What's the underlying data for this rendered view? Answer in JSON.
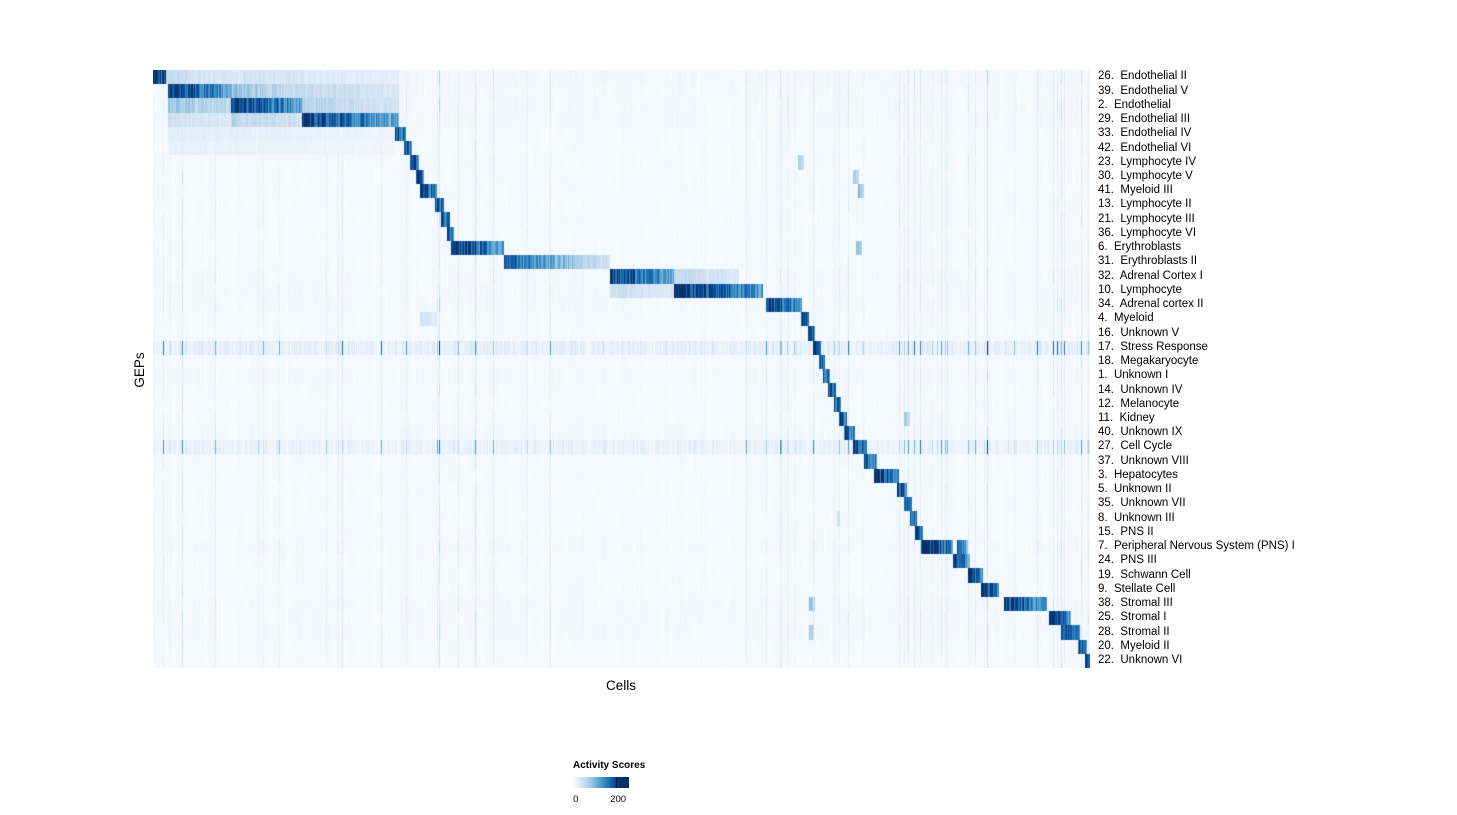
{
  "figure": {
    "xlabel": "Cells",
    "ylabel": "GEPs"
  },
  "chart_data": {
    "type": "heatmap",
    "title": "",
    "xlabel": "Cells",
    "ylabel": "GEPs",
    "n_rows": 42,
    "value_name": "Activity Scores",
    "value_range": [
      0,
      200
    ],
    "score_max": 210,
    "noise_seed": 42,
    "colormap": [
      "#f7fbff",
      "#deebf7",
      "#c6dbef",
      "#9ecae1",
      "#6baed6",
      "#4292c6",
      "#2171b5",
      "#08519c",
      "#08306b"
    ],
    "legend": {
      "title": "Activity Scores",
      "full_at": 0.85,
      "ticks": [
        {
          "label": "0",
          "pos": 0.05
        },
        {
          "label": "200",
          "pos": 0.77
        }
      ]
    },
    "rows_note": "blocks are [startFraction, endFraction, activityScoreAtStart, activityScoreAtEnd]; bg is ambient activity level",
    "rows": [
      {
        "label": "26.  Endothelial II",
        "bg": 6,
        "blocks": [
          [
            0.0,
            0.013,
            215,
            170
          ],
          [
            0.013,
            0.095,
            50,
            25
          ],
          [
            0.095,
            0.262,
            38,
            18
          ]
        ]
      },
      {
        "label": "39.  Endothelial V",
        "bg": 5,
        "blocks": [
          [
            0.016,
            0.083,
            215,
            110
          ],
          [
            0.083,
            0.158,
            85,
            45
          ],
          [
            0.158,
            0.262,
            55,
            30
          ]
        ]
      },
      {
        "label": "2.  Endothelial",
        "bg": 5,
        "blocks": [
          [
            0.016,
            0.083,
            80,
            50
          ],
          [
            0.083,
            0.158,
            215,
            120
          ],
          [
            0.158,
            0.262,
            65,
            35
          ]
        ]
      },
      {
        "label": "29.  Endothelial III",
        "bg": 5,
        "blocks": [
          [
            0.016,
            0.083,
            45,
            28
          ],
          [
            0.083,
            0.158,
            60,
            40
          ],
          [
            0.158,
            0.262,
            210,
            105
          ]
        ]
      },
      {
        "label": "33.  Endothelial IV",
        "bg": 4,
        "blocks": [
          [
            0.016,
            0.258,
            22,
            10
          ],
          [
            0.258,
            0.269,
            200,
            150
          ]
        ]
      },
      {
        "label": "42.  Endothelial VI",
        "bg": 4,
        "blocks": [
          [
            0.016,
            0.258,
            16,
            8
          ],
          [
            0.267,
            0.276,
            195,
            150
          ]
        ]
      },
      {
        "label": "23.  Lymphocyte IV",
        "bg": 4,
        "blocks": [
          [
            0.274,
            0.283,
            195,
            150
          ],
          [
            0.688,
            0.694,
            70,
            45
          ]
        ]
      },
      {
        "label": "30.  Lymphocyte V",
        "bg": 4,
        "blocks": [
          [
            0.28,
            0.289,
            195,
            150
          ],
          [
            0.747,
            0.753,
            75,
            50
          ]
        ]
      },
      {
        "label": "41.  Myeloid III",
        "bg": 4,
        "blocks": [
          [
            0.284,
            0.303,
            210,
            135
          ],
          [
            0.752,
            0.758,
            85,
            55
          ]
        ]
      },
      {
        "label": "13.  Lymphocyte II",
        "bg": 4,
        "blocks": [
          [
            0.3,
            0.31,
            190,
            145
          ]
        ]
      },
      {
        "label": "21.  Lymphocyte III",
        "bg": 4,
        "blocks": [
          [
            0.307,
            0.316,
            190,
            145
          ]
        ]
      },
      {
        "label": "36.  Lymphocyte VI",
        "bg": 4,
        "blocks": [
          [
            0.313,
            0.321,
            185,
            140
          ]
        ]
      },
      {
        "label": "6.  Erythroblasts",
        "bg": 4,
        "blocks": [
          [
            0.318,
            0.374,
            215,
            115
          ],
          [
            0.75,
            0.756,
            95,
            60
          ]
        ]
      },
      {
        "label": "31.  Erythroblasts II",
        "bg": 4,
        "blocks": [
          [
            0.374,
            0.487,
            170,
            35
          ]
        ]
      },
      {
        "label": "32.  Adrenal Cortex I",
        "bg": 5,
        "blocks": [
          [
            0.487,
            0.556,
            210,
            105
          ],
          [
            0.556,
            0.625,
            55,
            28
          ]
        ]
      },
      {
        "label": "10.  Lymphocyte",
        "bg": 5,
        "blocks": [
          [
            0.487,
            0.556,
            45,
            28
          ],
          [
            0.556,
            0.651,
            220,
            125
          ]
        ]
      },
      {
        "label": "34.  Adrenal cortex II",
        "bg": 5,
        "blocks": [
          [
            0.654,
            0.692,
            215,
            115
          ]
        ]
      },
      {
        "label": "4.  Myeloid",
        "bg": 4,
        "blocks": [
          [
            0.284,
            0.303,
            40,
            22
          ],
          [
            0.691,
            0.7,
            200,
            150
          ]
        ]
      },
      {
        "label": "16.  Unknown V",
        "bg": 4,
        "blocks": [
          [
            0.698,
            0.706,
            190,
            145
          ]
        ]
      },
      {
        "label": "17.  Stress Response",
        "bg": 24,
        "blocks": [
          [
            0.704,
            0.712,
            190,
            145
          ]
        ]
      },
      {
        "label": "18.  Megakaryocyte",
        "bg": 4,
        "blocks": [
          [
            0.71,
            0.717,
            185,
            145
          ]
        ]
      },
      {
        "label": "1.  Unknown I",
        "bg": 5,
        "blocks": [
          [
            0.715,
            0.722,
            185,
            145
          ]
        ]
      },
      {
        "label": "14.  Unknown IV",
        "bg": 4,
        "blocks": [
          [
            0.72,
            0.728,
            185,
            145
          ]
        ]
      },
      {
        "label": "12.  Melanocyte",
        "bg": 4,
        "blocks": [
          [
            0.726,
            0.734,
            190,
            145
          ]
        ]
      },
      {
        "label": "11.  Kidney",
        "bg": 4,
        "blocks": [
          [
            0.732,
            0.74,
            190,
            145
          ],
          [
            0.801,
            0.807,
            75,
            50
          ]
        ]
      },
      {
        "label": "40.  Unknown IX",
        "bg": 5,
        "blocks": [
          [
            0.737,
            0.749,
            190,
            135
          ]
        ]
      },
      {
        "label": "27.  Cell Cycle",
        "bg": 20,
        "blocks": [
          [
            0.746,
            0.761,
            210,
            135
          ]
        ]
      },
      {
        "label": "37.  Unknown VIII",
        "bg": 4,
        "blocks": [
          [
            0.758,
            0.772,
            200,
            140
          ]
        ]
      },
      {
        "label": "3.  Hepatocytes",
        "bg": 4,
        "blocks": [
          [
            0.769,
            0.796,
            215,
            125
          ]
        ]
      },
      {
        "label": "5.  Unknown II",
        "bg": 4,
        "blocks": [
          [
            0.794,
            0.804,
            195,
            148
          ]
        ]
      },
      {
        "label": "35.  Unknown VII",
        "bg": 4,
        "blocks": [
          [
            0.801,
            0.809,
            190,
            145
          ]
        ]
      },
      {
        "label": "8.  Unknown III",
        "bg": 4,
        "blocks": [
          [
            0.729,
            0.733,
            60,
            40
          ],
          [
            0.807,
            0.815,
            190,
            145
          ]
        ]
      },
      {
        "label": "15.  PNS II",
        "bg": 4,
        "blocks": [
          [
            0.813,
            0.821,
            190,
            145
          ]
        ]
      },
      {
        "label": "7.  Peripheral Nervous System (PNS) I",
        "bg": 5,
        "blocks": [
          [
            0.819,
            0.853,
            225,
            145
          ],
          [
            0.858,
            0.869,
            155,
            100
          ]
        ]
      },
      {
        "label": "24.  PNS III",
        "bg": 4,
        "blocks": [
          [
            0.853,
            0.871,
            205,
            125
          ]
        ]
      },
      {
        "label": "19.  Schwann Cell",
        "bg": 4,
        "blocks": [
          [
            0.869,
            0.885,
            205,
            135
          ]
        ]
      },
      {
        "label": "9.  Stellate Cell",
        "bg": 4,
        "blocks": [
          [
            0.883,
            0.902,
            215,
            135
          ]
        ]
      },
      {
        "label": "38.  Stromal III",
        "bg": 5,
        "blocks": [
          [
            0.7,
            0.706,
            85,
            55
          ],
          [
            0.908,
            0.954,
            215,
            115
          ]
        ]
      },
      {
        "label": "25.  Stromal I",
        "bg": 5,
        "blocks": [
          [
            0.956,
            0.979,
            205,
            130
          ]
        ]
      },
      {
        "label": "28.  Stromal II",
        "bg": 5,
        "blocks": [
          [
            0.7,
            0.705,
            75,
            50
          ],
          [
            0.969,
            0.989,
            195,
            130
          ]
        ]
      },
      {
        "label": "20.  Myeloid II",
        "bg": 4,
        "blocks": [
          [
            0.987,
            0.996,
            190,
            148
          ]
        ]
      },
      {
        "label": "22.  Unknown VI",
        "bg": 4,
        "blocks": [
          [
            0.994,
            1.001,
            205,
            160
          ]
        ]
      }
    ]
  }
}
